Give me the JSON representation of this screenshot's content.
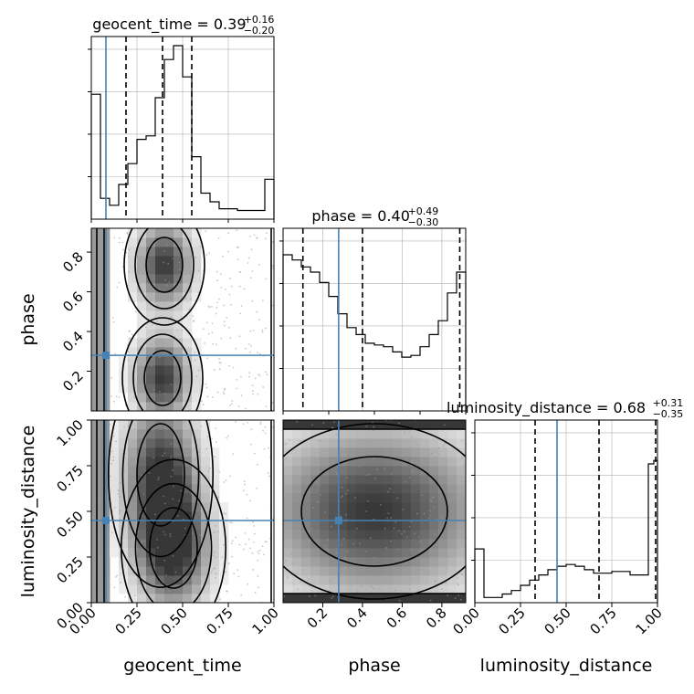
{
  "chart_data": {
    "type": "corner",
    "parameters": [
      "geocent_time",
      "phase",
      "luminosity_distance"
    ],
    "truth": {
      "geocent_time": 0.08,
      "phase": 0.28,
      "luminosity_distance": 0.45
    },
    "quantiles": {
      "geocent_time": [
        0.19,
        0.39,
        0.55
      ],
      "phase": [
        0.1,
        0.4,
        0.89
      ],
      "luminosity_distance": [
        0.33,
        0.68,
        0.99
      ]
    },
    "titles": [
      {
        "param": "geocent_time",
        "label": "geocent_time = 0.39",
        "plus": "+0.16",
        "minus": "−0.20"
      },
      {
        "param": "phase",
        "label": "phase = 0.40",
        "plus": "+0.49",
        "minus": "−0.30"
      },
      {
        "param": "luminosity_distance",
        "label": "luminosity_distance = 0.68",
        "plus": "+0.31",
        "minus": "−0.35"
      }
    ],
    "ranges": {
      "geocent_time": [
        0,
        1
      ],
      "phase": [
        0,
        0.92
      ],
      "luminosity_distance": [
        0,
        1
      ]
    },
    "histograms": {
      "geocent_time": {
        "bins": [
          0.0,
          0.05,
          0.1,
          0.15,
          0.2,
          0.25,
          0.3,
          0.35,
          0.4,
          0.45,
          0.5,
          0.55,
          0.6,
          0.65,
          0.7,
          0.75,
          0.8,
          0.85,
          0.9,
          0.95,
          1.0
        ],
        "counts": [
          0.72,
          0.12,
          0.08,
          0.2,
          0.32,
          0.46,
          0.48,
          0.7,
          0.92,
          1.0,
          0.82,
          0.36,
          0.15,
          0.1,
          0.06,
          0.06,
          0.05,
          0.05,
          0.05,
          0.23
        ]
      },
      "phase": {
        "bins": [
          0.0,
          0.046,
          0.092,
          0.138,
          0.184,
          0.23,
          0.276,
          0.322,
          0.368,
          0.414,
          0.46,
          0.506,
          0.552,
          0.598,
          0.644,
          0.69,
          0.736,
          0.782,
          0.828,
          0.874,
          0.92
        ],
        "counts": [
          0.9,
          0.87,
          0.83,
          0.8,
          0.74,
          0.66,
          0.56,
          0.48,
          0.44,
          0.39,
          0.38,
          0.37,
          0.34,
          0.31,
          0.32,
          0.37,
          0.44,
          0.52,
          0.68,
          0.8
        ]
      },
      "luminosity_distance": {
        "bins": [
          0.0,
          0.05,
          0.1,
          0.15,
          0.2,
          0.25,
          0.3,
          0.35,
          0.4,
          0.45,
          0.5,
          0.55,
          0.6,
          0.65,
          0.7,
          0.75,
          0.8,
          0.85,
          0.9,
          0.95,
          0.98,
          1.0
        ],
        "counts": [
          0.31,
          0.03,
          0.03,
          0.05,
          0.07,
          0.1,
          0.13,
          0.16,
          0.19,
          0.21,
          0.22,
          0.21,
          0.19,
          0.17,
          0.17,
          0.18,
          0.18,
          0.16,
          0.16,
          0.8,
          0.82
        ]
      }
    },
    "axes": {
      "geocent_time": {
        "ticks": [
          0.0,
          0.25,
          0.5,
          0.75,
          1.0
        ],
        "tick_labels": [
          "0.00",
          "0.25",
          "0.50",
          "0.75",
          "1.00"
        ],
        "xlabel": "geocent_time"
      },
      "phase": {
        "ticks": [
          0.2,
          0.4,
          0.6,
          0.8
        ],
        "tick_labels": [
          "0.2",
          "0.4",
          "0.6",
          "0.8"
        ],
        "xlabel": "phase",
        "ylabel": "phase"
      },
      "luminosity_distance": {
        "ticks": [
          0.0,
          0.25,
          0.5,
          0.75,
          1.0
        ],
        "tick_labels": [
          "0.00",
          "0.25",
          "0.50",
          "0.75",
          "1.00"
        ],
        "xlabel": "luminosity_distance",
        "ylabel": "luminosity_distance"
      }
    },
    "grid": true,
    "colors": {
      "truth": "#4682b4",
      "hist": "#000000",
      "quantile": "#000000",
      "grid": "#b0b0b0"
    }
  }
}
